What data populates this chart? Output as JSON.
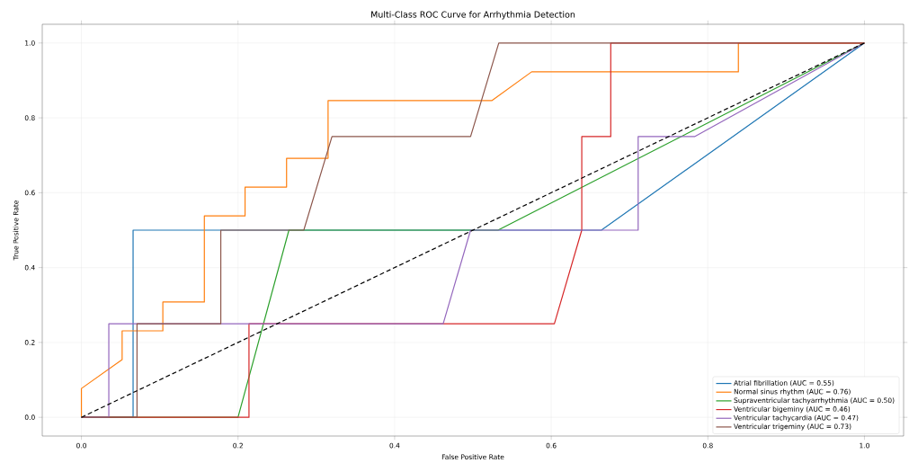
{
  "chart_data": {
    "type": "line",
    "title": "Multi-Class ROC Curve for Arrhythmia Detection",
    "xlabel": "False Positive Rate",
    "ylabel": "True Positive Rate",
    "xlim": [
      -0.05,
      1.05
    ],
    "ylim": [
      -0.05,
      1.05
    ],
    "xticks": [
      {
        "value": 0,
        "label": "0.0"
      },
      {
        "value": 0.2,
        "label": "0.2"
      },
      {
        "value": 0.4,
        "label": "0.4"
      },
      {
        "value": 0.6,
        "label": "0.6"
      },
      {
        "value": 0.8,
        "label": "0.8"
      },
      {
        "value": 1,
        "label": "1.0"
      }
    ],
    "yticks": [
      {
        "value": 0,
        "label": "0.0"
      },
      {
        "value": 0.2,
        "label": "0.2"
      },
      {
        "value": 0.4,
        "label": "0.4"
      },
      {
        "value": 0.6,
        "label": "0.6"
      },
      {
        "value": 0.8,
        "label": "0.8"
      },
      {
        "value": 1,
        "label": "1.0"
      }
    ],
    "grid": true,
    "legend": "bottom right",
    "series": [
      {
        "name": "Atrial fibrillation (AUC = 0.55)",
        "color": "#1f77b4",
        "x": [
          0,
          0.066,
          0.066,
          0.664,
          1
        ],
        "values": [
          0,
          0,
          0.5,
          0.5,
          1
        ]
      },
      {
        "name": "Normal sinus rhythm (AUC = 0.76)",
        "color": "#ff7f0e",
        "x": [
          0,
          0,
          0.052,
          0.052,
          0.104,
          0.104,
          0.157,
          0.157,
          0.209,
          0.209,
          0.262,
          0.262,
          0.315,
          0.315,
          0.524,
          0.575,
          0.839,
          0.839,
          1
        ],
        "values": [
          0,
          0.077,
          0.154,
          0.231,
          0.231,
          0.308,
          0.308,
          0.538,
          0.538,
          0.615,
          0.615,
          0.692,
          0.692,
          0.846,
          0.846,
          0.923,
          0.923,
          1,
          1
        ]
      },
      {
        "name": "Supraventricular tachyarrhythmia (AUC = 0.50)",
        "color": "#2ca02c",
        "x": [
          0,
          0.2,
          0.265,
          0.532,
          1
        ],
        "values": [
          0,
          0,
          0.5,
          0.5,
          1
        ]
      },
      {
        "name": "Ventricular bigeminy (AUC = 0.46)",
        "color": "#d62728",
        "x": [
          0,
          0.214,
          0.214,
          0.604,
          0.639,
          0.639,
          0.676,
          0.676,
          1
        ],
        "values": [
          0,
          0,
          0.25,
          0.25,
          0.5,
          0.75,
          0.75,
          1,
          1
        ]
      },
      {
        "name": "Ventricular tachycardia (AUC = 0.47)",
        "color": "#9467bd",
        "x": [
          0,
          0.035,
          0.035,
          0.462,
          0.497,
          0.711,
          0.711,
          0.783,
          1
        ],
        "values": [
          0,
          0,
          0.25,
          0.25,
          0.5,
          0.5,
          0.75,
          0.75,
          1
        ]
      },
      {
        "name": "Ventricular trigeminy (AUC = 0.73)",
        "color": "#8c564b",
        "x": [
          0,
          0.071,
          0.071,
          0.178,
          0.178,
          0.284,
          0.32,
          0.497,
          0.533,
          1
        ],
        "values": [
          0,
          0,
          0.25,
          0.25,
          0.5,
          0.5,
          0.75,
          0.75,
          1,
          1
        ]
      },
      {
        "color": "#000000",
        "line_style": "dashed",
        "x": [
          0,
          1
        ],
        "values": [
          0,
          1
        ]
      }
    ]
  }
}
